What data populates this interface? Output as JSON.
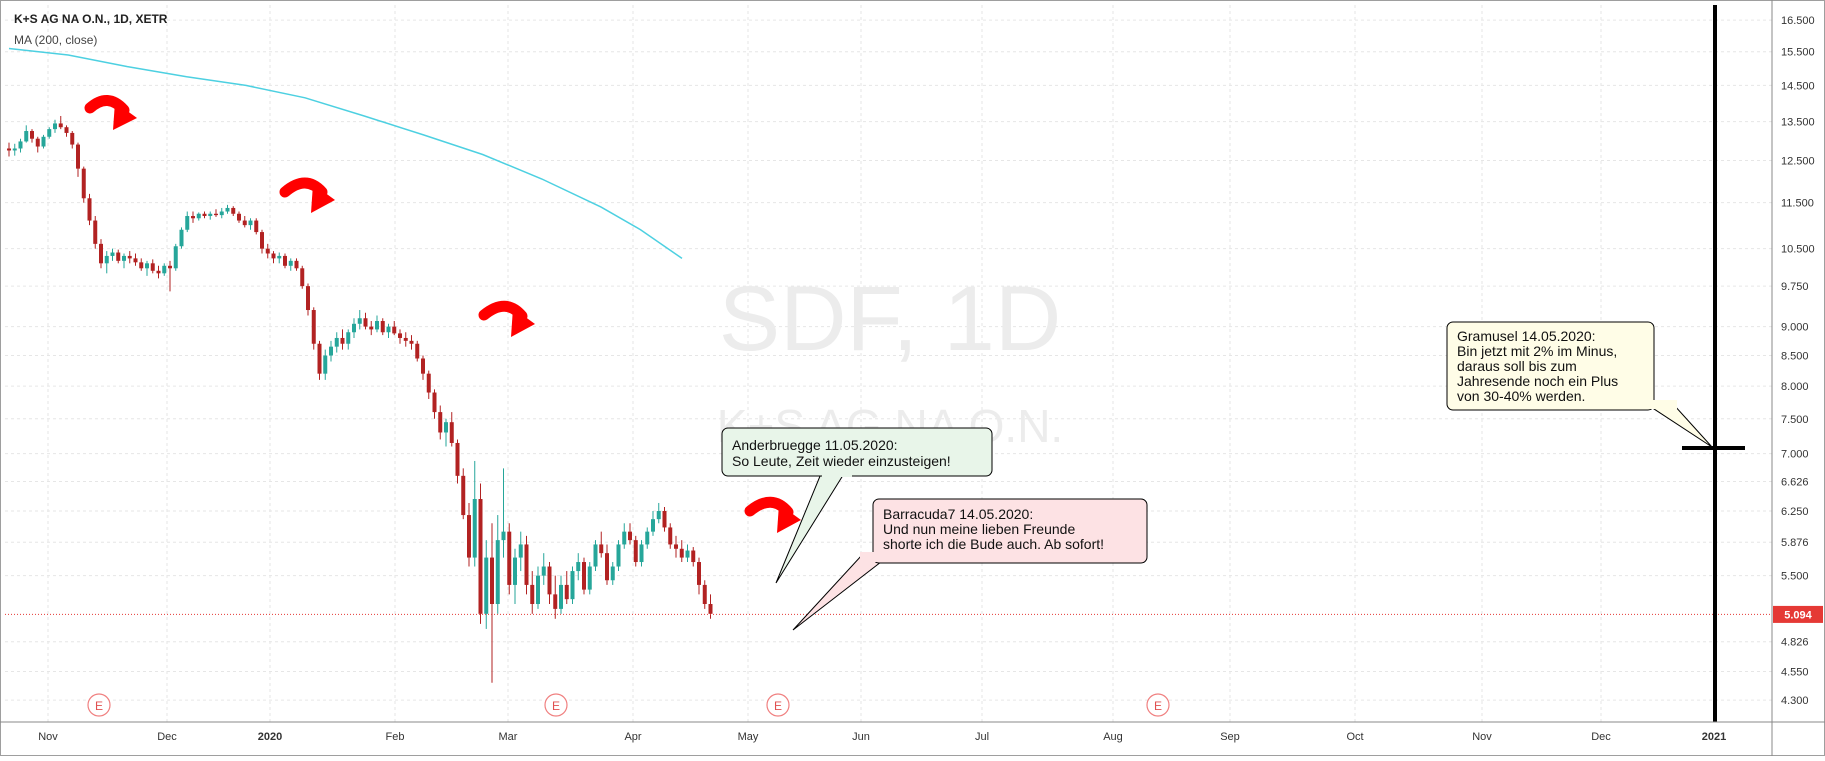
{
  "header": {
    "symbol_line": "K+S AG NA O.N., 1D, XETR",
    "indicator_label": "MA (200, close)"
  },
  "watermark": {
    "ticker": "SDF, 1D",
    "name": "K+S AG NA O.N."
  },
  "colors": {
    "up": "#26a69a",
    "down": "#b22222",
    "ma": "#4dd0e1",
    "last_price": "#e53935",
    "event": "#f08080",
    "arrow": "#ff0000",
    "vline": "#000000"
  },
  "chart_data": {
    "type": "candlestick",
    "interval": "1D",
    "exchange": "XETR",
    "date_range": [
      "2019-10-25",
      "2020-05-14"
    ],
    "x_axis_labels": [
      "Nov",
      "Dec",
      "2020",
      "Feb",
      "Mar",
      "Apr",
      "May",
      "Jun",
      "Jul",
      "Aug",
      "Sep",
      "Oct",
      "Nov",
      "Dec",
      "2021"
    ],
    "y_ticks": [
      "16.500",
      "15.500",
      "14.500",
      "13.500",
      "12.500",
      "11.500",
      "10.500",
      "9.750",
      "9.000",
      "8.500",
      "8.000",
      "7.500",
      "7.000",
      "6.626",
      "6.250",
      "5.876",
      "5.500",
      "4.826",
      "4.550",
      "4.300"
    ],
    "y_range": [
      4.2,
      16.7
    ],
    "scale": "log",
    "grid": true,
    "last_price": "5.094",
    "candles": [
      [
        12.8,
        12.95,
        12.6,
        12.75
      ],
      [
        12.75,
        12.92,
        12.62,
        12.8
      ],
      [
        12.8,
        13.05,
        12.7,
        12.98
      ],
      [
        12.98,
        13.4,
        12.95,
        13.25
      ],
      [
        13.25,
        13.3,
        12.95,
        13.05
      ],
      [
        13.05,
        13.1,
        12.7,
        12.85
      ],
      [
        12.85,
        13.15,
        12.8,
        13.1
      ],
      [
        13.1,
        13.35,
        13.05,
        13.3
      ],
      [
        13.3,
        13.55,
        13.2,
        13.45
      ],
      [
        13.45,
        13.65,
        13.3,
        13.35
      ],
      [
        13.35,
        13.4,
        13.1,
        13.2
      ],
      [
        13.2,
        13.25,
        12.8,
        12.9
      ],
      [
        12.9,
        12.95,
        12.1,
        12.3
      ],
      [
        12.3,
        12.35,
        11.5,
        11.6
      ],
      [
        11.6,
        11.7,
        11.0,
        11.1
      ],
      [
        11.1,
        11.2,
        10.5,
        10.6
      ],
      [
        10.6,
        10.7,
        10.1,
        10.2
      ],
      [
        10.2,
        10.45,
        10.0,
        10.35
      ],
      [
        10.35,
        10.5,
        10.25,
        10.42
      ],
      [
        10.42,
        10.48,
        10.2,
        10.25
      ],
      [
        10.25,
        10.4,
        10.1,
        10.35
      ],
      [
        10.35,
        10.45,
        10.2,
        10.3
      ],
      [
        10.3,
        10.4,
        10.15,
        10.22
      ],
      [
        10.22,
        10.3,
        10.05,
        10.1
      ],
      [
        10.1,
        10.25,
        9.95,
        10.2
      ],
      [
        10.2,
        10.28,
        10.0,
        10.05
      ],
      [
        10.05,
        10.15,
        9.9,
        10.0
      ],
      [
        10.0,
        10.2,
        9.95,
        10.15
      ],
      [
        10.15,
        10.25,
        9.65,
        10.1
      ],
      [
        10.1,
        10.6,
        10.05,
        10.55
      ],
      [
        10.55,
        10.95,
        10.5,
        10.9
      ],
      [
        10.9,
        11.3,
        10.85,
        11.2
      ],
      [
        11.2,
        11.3,
        11.05,
        11.15
      ],
      [
        11.15,
        11.28,
        11.1,
        11.25
      ],
      [
        11.25,
        11.3,
        11.15,
        11.2
      ],
      [
        11.2,
        11.3,
        11.12,
        11.25
      ],
      [
        11.25,
        11.35,
        11.18,
        11.22
      ],
      [
        11.22,
        11.38,
        11.15,
        11.3
      ],
      [
        11.3,
        11.45,
        11.25,
        11.38
      ],
      [
        11.38,
        11.42,
        11.2,
        11.25
      ],
      [
        11.25,
        11.3,
        11.05,
        11.1
      ],
      [
        11.1,
        11.2,
        10.95,
        11.0
      ],
      [
        11.0,
        11.15,
        10.9,
        11.1
      ],
      [
        11.1,
        11.15,
        10.8,
        10.85
      ],
      [
        10.85,
        10.9,
        10.4,
        10.5
      ],
      [
        10.5,
        10.6,
        10.3,
        10.4
      ],
      [
        10.4,
        10.45,
        10.2,
        10.3
      ],
      [
        10.3,
        10.42,
        10.2,
        10.35
      ],
      [
        10.35,
        10.4,
        10.1,
        10.15
      ],
      [
        10.15,
        10.3,
        10.05,
        10.25
      ],
      [
        10.25,
        10.3,
        10.05,
        10.1
      ],
      [
        10.1,
        10.15,
        9.7,
        9.75
      ],
      [
        9.75,
        9.8,
        9.2,
        9.3
      ],
      [
        9.3,
        9.35,
        8.6,
        8.7
      ],
      [
        8.7,
        8.75,
        8.1,
        8.2
      ],
      [
        8.2,
        8.6,
        8.1,
        8.5
      ],
      [
        8.5,
        8.75,
        8.4,
        8.65
      ],
      [
        8.65,
        8.9,
        8.55,
        8.8
      ],
      [
        8.8,
        8.95,
        8.6,
        8.7
      ],
      [
        8.7,
        8.95,
        8.6,
        8.9
      ],
      [
        8.9,
        9.15,
        8.8,
        9.05
      ],
      [
        9.05,
        9.3,
        8.95,
        9.15
      ],
      [
        9.15,
        9.25,
        8.95,
        9.0
      ],
      [
        9.0,
        9.1,
        8.85,
        8.95
      ],
      [
        8.95,
        9.2,
        8.9,
        9.1
      ],
      [
        9.1,
        9.15,
        8.85,
        8.9
      ],
      [
        8.9,
        9.05,
        8.8,
        9.0
      ],
      [
        9.0,
        9.1,
        8.85,
        8.88
      ],
      [
        8.88,
        8.95,
        8.7,
        8.8
      ],
      [
        8.8,
        8.9,
        8.65,
        8.75
      ],
      [
        8.75,
        8.85,
        8.6,
        8.7
      ],
      [
        8.7,
        8.75,
        8.4,
        8.45
      ],
      [
        8.45,
        8.5,
        8.1,
        8.2
      ],
      [
        8.2,
        8.25,
        7.8,
        7.9
      ],
      [
        7.9,
        7.95,
        7.5,
        7.6
      ],
      [
        7.6,
        7.7,
        7.2,
        7.3
      ],
      [
        7.3,
        7.5,
        7.1,
        7.45
      ],
      [
        7.45,
        7.6,
        7.1,
        7.15
      ],
      [
        7.15,
        7.2,
        6.6,
        6.7
      ],
      [
        6.7,
        6.8,
        6.15,
        6.2
      ],
      [
        6.2,
        6.35,
        5.6,
        5.7
      ],
      [
        5.7,
        6.9,
        5.6,
        6.4
      ],
      [
        6.4,
        6.6,
        5.0,
        5.1
      ],
      [
        5.1,
        5.9,
        4.95,
        5.7
      ],
      [
        5.7,
        6.1,
        4.45,
        5.2
      ],
      [
        5.2,
        6.2,
        5.1,
        5.9
      ],
      [
        5.9,
        6.8,
        5.7,
        6.0
      ],
      [
        6.0,
        6.1,
        5.3,
        5.4
      ],
      [
        5.4,
        5.8,
        5.2,
        5.7
      ],
      [
        5.7,
        6.0,
        5.55,
        5.85
      ],
      [
        5.85,
        5.95,
        5.3,
        5.4
      ],
      [
        5.4,
        5.55,
        5.1,
        5.2
      ],
      [
        5.2,
        5.6,
        5.15,
        5.5
      ],
      [
        5.5,
        5.75,
        5.4,
        5.6
      ],
      [
        5.6,
        5.65,
        5.2,
        5.3
      ],
      [
        5.3,
        5.5,
        5.05,
        5.15
      ],
      [
        5.15,
        5.5,
        5.1,
        5.4
      ],
      [
        5.4,
        5.55,
        5.2,
        5.25
      ],
      [
        5.25,
        5.6,
        5.2,
        5.55
      ],
      [
        5.55,
        5.75,
        5.45,
        5.65
      ],
      [
        5.65,
        5.7,
        5.3,
        5.35
      ],
      [
        5.35,
        5.65,
        5.3,
        5.6
      ],
      [
        5.6,
        5.9,
        5.55,
        5.85
      ],
      [
        5.85,
        6.0,
        5.7,
        5.75
      ],
      [
        5.75,
        5.85,
        5.4,
        5.45
      ],
      [
        5.45,
        5.65,
        5.4,
        5.6
      ],
      [
        5.6,
        5.9,
        5.55,
        5.85
      ],
      [
        5.85,
        6.1,
        5.8,
        6.0
      ],
      [
        6.0,
        6.1,
        5.85,
        5.9
      ],
      [
        5.9,
        5.95,
        5.6,
        5.65
      ],
      [
        5.65,
        5.9,
        5.6,
        5.85
      ],
      [
        5.85,
        6.05,
        5.8,
        6.0
      ],
      [
        6.0,
        6.25,
        5.95,
        6.15
      ],
      [
        6.15,
        6.35,
        6.1,
        6.25
      ],
      [
        6.25,
        6.3,
        6.0,
        6.05
      ],
      [
        6.05,
        6.1,
        5.8,
        5.85
      ],
      [
        5.85,
        5.95,
        5.7,
        5.8
      ],
      [
        5.8,
        5.9,
        5.65,
        5.7
      ],
      [
        5.7,
        5.85,
        5.65,
        5.78
      ],
      [
        5.78,
        5.82,
        5.6,
        5.65
      ],
      [
        5.65,
        5.7,
        5.3,
        5.4
      ],
      [
        5.4,
        5.45,
        5.15,
        5.2
      ],
      [
        5.2,
        5.3,
        5.05,
        5.1
      ]
    ],
    "ma200": [
      [
        0,
        15.6
      ],
      [
        60,
        15.4
      ],
      [
        120,
        15.05
      ],
      [
        180,
        14.75
      ],
      [
        240,
        14.5
      ],
      [
        300,
        14.15
      ],
      [
        360,
        13.65
      ],
      [
        420,
        13.15
      ],
      [
        480,
        12.65
      ],
      [
        540,
        12.05
      ],
      [
        600,
        11.4
      ],
      [
        640,
        10.9
      ],
      [
        682,
        10.3
      ]
    ],
    "annotations": [
      {
        "author": "Anderbruegge 11.05.2020:",
        "text": "So Leute, Zeit wieder einzusteigen!",
        "style": "green"
      },
      {
        "author": "Barracuda7 14.05.2020:",
        "text": "Und nun meine lieben Freunde",
        "text2": "shorte ich die Bude auch. Ab sofort!",
        "style": "red"
      },
      {
        "author": "Gramusel 14.05.2020:",
        "text": "Bin jetzt mit 2% im Minus,",
        "text2": "daraus soll bis zum",
        "text3": "Jahresende noch ein Plus",
        "text4": "von 30-40% werden.",
        "style": "yellow"
      }
    ],
    "event_markers": [
      "E",
      "E",
      "E",
      "E"
    ]
  }
}
